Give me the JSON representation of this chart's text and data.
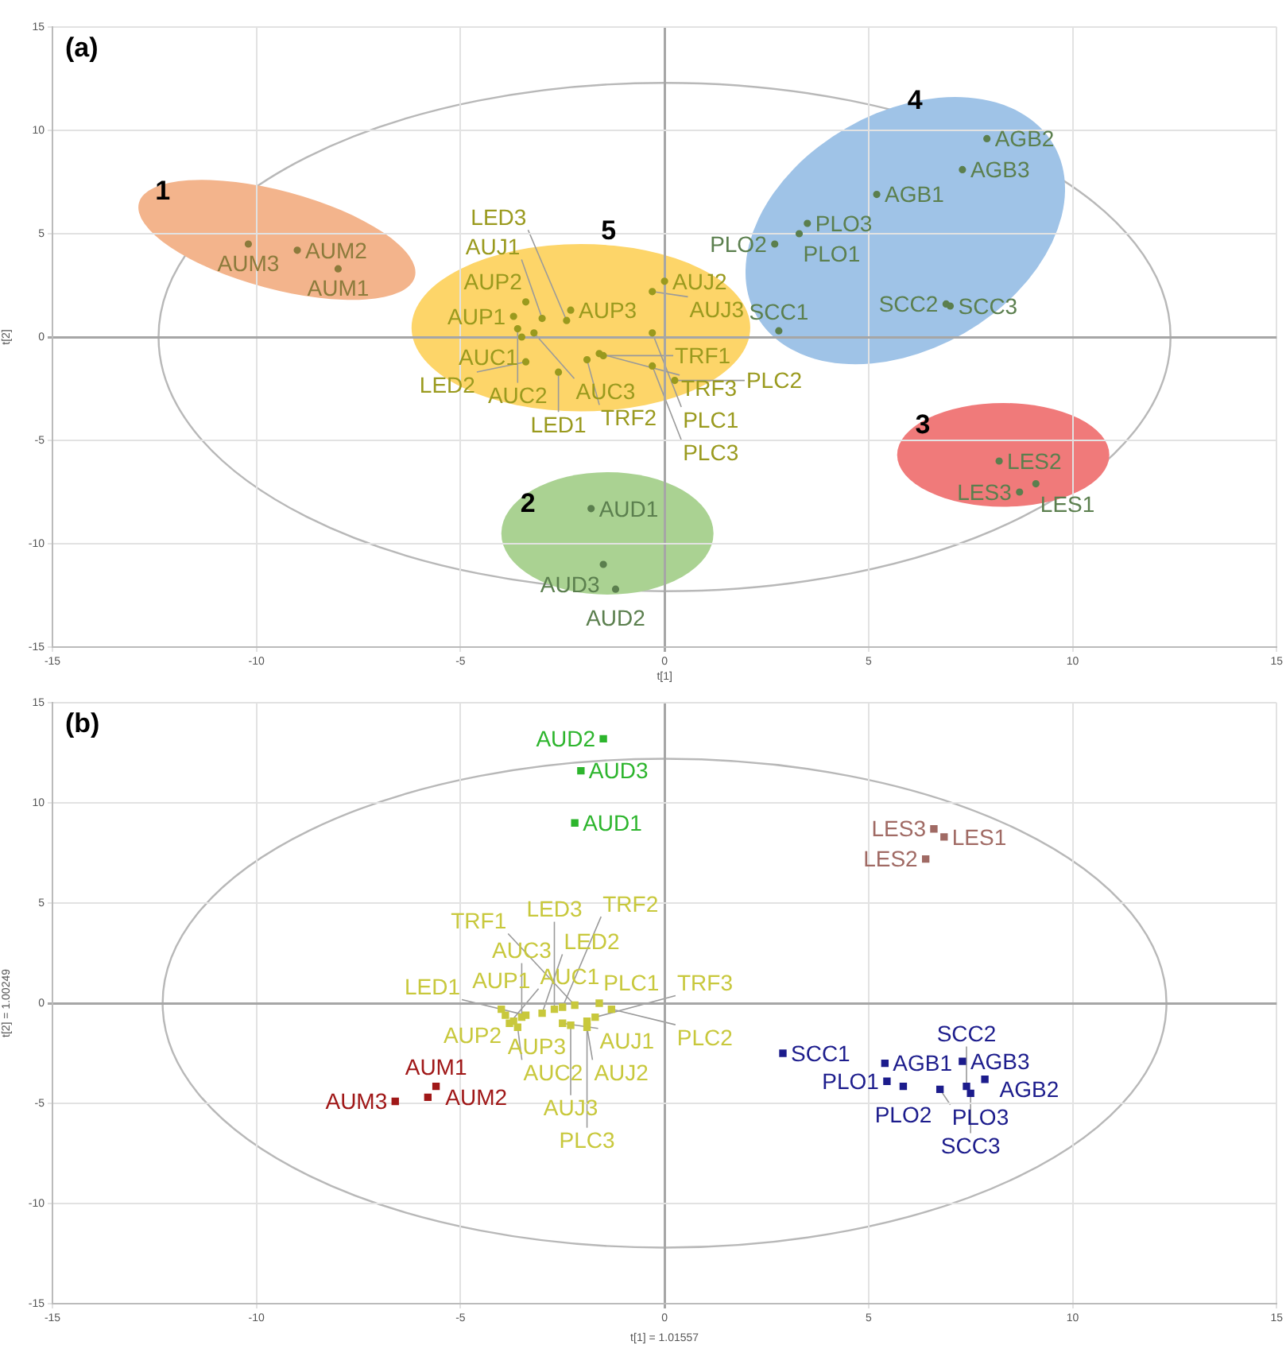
{
  "chart_data": [
    {
      "type": "scatter",
      "title": "(a)",
      "xlabel": "t[1]",
      "ylabel": "t[2]",
      "xlim": [
        -15,
        15
      ],
      "ylim": [
        -15,
        15
      ],
      "xticks": [
        -15,
        -10,
        -5,
        0,
        5,
        10,
        15
      ],
      "yticks": [
        -15,
        -10,
        -5,
        0,
        5,
        10,
        15
      ],
      "grid": true,
      "legend": false,
      "marker": "circle",
      "annotations": [
        "1",
        "2",
        "3",
        "4",
        "5"
      ],
      "series": [
        {
          "color": "#8c7b3c",
          "x": [
            -10.2,
            -9.0,
            -8.0
          ],
          "values": [
            4.5,
            4.2,
            3.3
          ],
          "value_labels": [
            "AUM3",
            "AUM2",
            "AUM1"
          ]
        },
        {
          "color": "#5b7f4e",
          "x": [
            -1.8,
            -1.5,
            -1.2
          ],
          "values": [
            -8.3,
            -11.0,
            -12.2
          ],
          "value_labels": [
            "AUD1",
            "AUD3",
            "AUD2"
          ]
        },
        {
          "color": "#5b7f4e",
          "x": [
            8.2,
            9.1,
            8.7
          ],
          "values": [
            -6.0,
            -7.1,
            -7.5
          ],
          "value_labels": [
            "LES2",
            "LES1",
            "LES3"
          ]
        },
        {
          "color": "#5b7f4e",
          "x": [
            7.9,
            7.3,
            5.2,
            3.5,
            3.3,
            2.7,
            6.9,
            7.0,
            2.8
          ],
          "values": [
            9.6,
            8.1,
            6.9,
            5.5,
            5.0,
            4.5,
            1.6,
            1.5,
            0.3
          ],
          "value_labels": [
            "AGB2",
            "AGB3",
            "AGB1",
            "PLO3",
            "PLO1",
            "PLO2",
            "SCC2",
            "SCC3",
            "SCC1"
          ]
        },
        {
          "color": "#9a9a1e",
          "x": [
            -3.7,
            -3.4,
            -2.3,
            -3.5,
            -3.6,
            -3.2,
            -3.0,
            0.0,
            -0.3,
            -2.6,
            -3.4,
            -2.4,
            -1.5,
            -1.9,
            -1.6,
            -0.3,
            0.25,
            -0.3
          ],
          "values": [
            1.0,
            1.7,
            1.3,
            0.0,
            0.4,
            0.2,
            0.9,
            2.7,
            2.2,
            -1.7,
            -1.2,
            0.8,
            -0.9,
            -1.1,
            -0.8,
            0.2,
            -2.1,
            -1.4
          ],
          "value_labels": [
            "AUP1",
            "AUP2",
            "AUP3",
            "AUC1",
            "AUC2",
            "AUC3",
            "AUJ1",
            "AUJ2",
            "AUJ3",
            "LED1",
            "LED2",
            "LED3",
            "TRF1",
            "TRF2",
            "TRF3",
            "PLC1",
            "PLC2",
            "PLC3"
          ]
        }
      ]
    },
    {
      "type": "scatter",
      "title": "(b)",
      "xlabel": "t[1] = 1.01557",
      "ylabel": "t[2] = 1.00249",
      "xlim": [
        -15,
        15
      ],
      "ylim": [
        -15,
        15
      ],
      "xticks": [
        -15,
        -10,
        -5,
        0,
        5,
        10,
        15
      ],
      "yticks": [
        -15,
        -10,
        -5,
        0,
        5,
        10,
        15
      ],
      "grid": true,
      "legend": false,
      "marker": "square",
      "series": [
        {
          "color": "#2db52d",
          "x": [
            -1.5,
            -2.05,
            -2.2
          ],
          "values": [
            13.2,
            11.6,
            9.0
          ],
          "value_labels": [
            "AUD2",
            "AUD3",
            "AUD1"
          ]
        },
        {
          "color": "#a06a64",
          "x": [
            6.6,
            6.85,
            6.4
          ],
          "values": [
            8.7,
            8.3,
            7.2
          ],
          "value_labels": [
            "LES3",
            "LES1",
            "LES2"
          ]
        },
        {
          "color": "#a01818",
          "x": [
            -6.6,
            -5.8,
            -5.6
          ],
          "values": [
            -4.9,
            -4.7,
            -4.15
          ],
          "value_labels": [
            "AUM3",
            "AUM2",
            "AUM1"
          ]
        },
        {
          "color": "#1c1c8c",
          "x": [
            2.9,
            5.4,
            5.45,
            5.85,
            6.75,
            7.3,
            7.4,
            7.85,
            7.5
          ],
          "values": [
            -2.5,
            -3.0,
            -3.9,
            -4.15,
            -4.3,
            -2.9,
            -4.15,
            -3.8,
            -4.5
          ],
          "value_labels": [
            "SCC1",
            "AGB1",
            "PLO1",
            "PLO2",
            "PLO3",
            "AGB3",
            "SCC2",
            "AGB2",
            "SCC3"
          ]
        },
        {
          "color": "#c8c83c",
          "x": [
            -4.0,
            -3.9,
            -3.7,
            -3.8,
            -3.6,
            -3.5,
            -2.5,
            -1.9,
            -2.3,
            -3.4,
            -3.0,
            -2.7,
            -2.2,
            -2.5,
            -1.7,
            -1.6,
            -1.3,
            -1.9
          ],
          "values": [
            -0.3,
            -0.6,
            -0.9,
            -1.0,
            -1.2,
            -0.7,
            -1.0,
            -1.2,
            -1.1,
            -0.6,
            -0.5,
            -0.3,
            -0.1,
            -0.2,
            -0.7,
            0.0,
            -0.3,
            -0.9
          ],
          "value_labels": [
            "AUP1",
            "AUP2",
            "AUP3",
            "AUC1",
            "AUC2",
            "AUC3",
            "AUJ1",
            "AUJ2",
            "AUJ3",
            "LED1",
            "LED2",
            "LED3",
            "TRF1",
            "TRF2",
            "TRF3",
            "PLC1",
            "PLC2",
            "PLC3"
          ]
        }
      ]
    }
  ]
}
